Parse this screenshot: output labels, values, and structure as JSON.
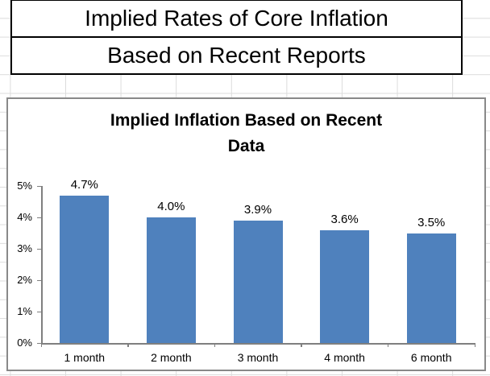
{
  "header": {
    "line1": "Implied Rates of Core Inflation",
    "line2": "Based on Recent Reports"
  },
  "chart_data": {
    "type": "bar",
    "title": "Implied Inflation Based on Recent Data",
    "title_lines": [
      "Implied Inflation Based on Recent",
      "Data"
    ],
    "categories": [
      "1 month",
      "2 month",
      "3 month",
      "4 month",
      "6 month"
    ],
    "values": [
      4.7,
      4.0,
      3.9,
      3.6,
      3.5
    ],
    "data_labels": [
      "4.7%",
      "4.0%",
      "3.9%",
      "3.6%",
      "3.5%"
    ],
    "y_ticks": [
      "0%",
      "1%",
      "2%",
      "3%",
      "4%",
      "5%"
    ],
    "ylim": [
      0,
      5
    ],
    "xlabel": "",
    "ylabel": "",
    "grid": false,
    "legend": "none",
    "bar_color": "#4f81bd",
    "axis_color": "#7f7f7f",
    "text_color": "#000000",
    "sheet_gridline_color": "#dcdcdc",
    "chart_border_color": "#898989"
  }
}
